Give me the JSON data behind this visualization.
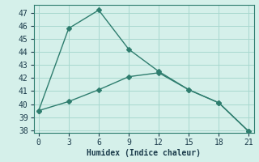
{
  "line1_x": [
    0,
    3,
    6,
    9,
    12,
    15,
    18,
    21
  ],
  "line1_y": [
    39.5,
    45.8,
    47.2,
    44.2,
    42.5,
    41.1,
    40.1,
    37.9
  ],
  "line2_x": [
    0,
    3,
    6,
    9,
    12,
    15,
    18,
    21
  ],
  "line2_y": [
    39.5,
    40.2,
    41.1,
    42.1,
    42.4,
    41.1,
    40.1,
    37.9
  ],
  "line_color": "#2e7d6e",
  "bg_color": "#d5f0ea",
  "grid_color": "#a8d8cf",
  "spine_color": "#2e7d6e",
  "xlabel": "Humidex (Indice chaleur)",
  "xlim": [
    -0.5,
    21.5
  ],
  "ylim": [
    37.8,
    47.6
  ],
  "xticks": [
    0,
    3,
    6,
    9,
    12,
    15,
    18,
    21
  ],
  "yticks": [
    38,
    39,
    40,
    41,
    42,
    43,
    44,
    45,
    46,
    47
  ],
  "font_color": "#1a3a4a",
  "xlabel_fontsize": 7,
  "tick_fontsize": 7,
  "linewidth": 1.0,
  "markersize": 3.0
}
